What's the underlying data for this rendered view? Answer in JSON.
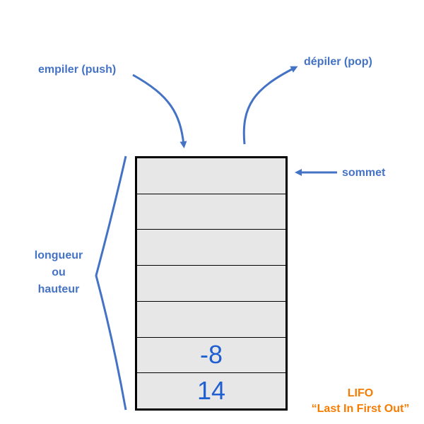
{
  "labels": {
    "push": "empiler (push)",
    "pop": "dépiler (pop)",
    "top": "sommet",
    "length": [
      "longueur",
      "ou",
      "hauteur"
    ]
  },
  "stack": {
    "cells": [
      "",
      "",
      "",
      "",
      "",
      "-8",
      "14"
    ]
  },
  "lifo": {
    "acronym": "LIFO",
    "expansion": "“Last In First Out”"
  },
  "colors": {
    "label": "#4472c4",
    "value": "#1f5fd1",
    "lifo": "#f57c00",
    "cell_fill": "#e7e7e7",
    "border": "#000000"
  }
}
